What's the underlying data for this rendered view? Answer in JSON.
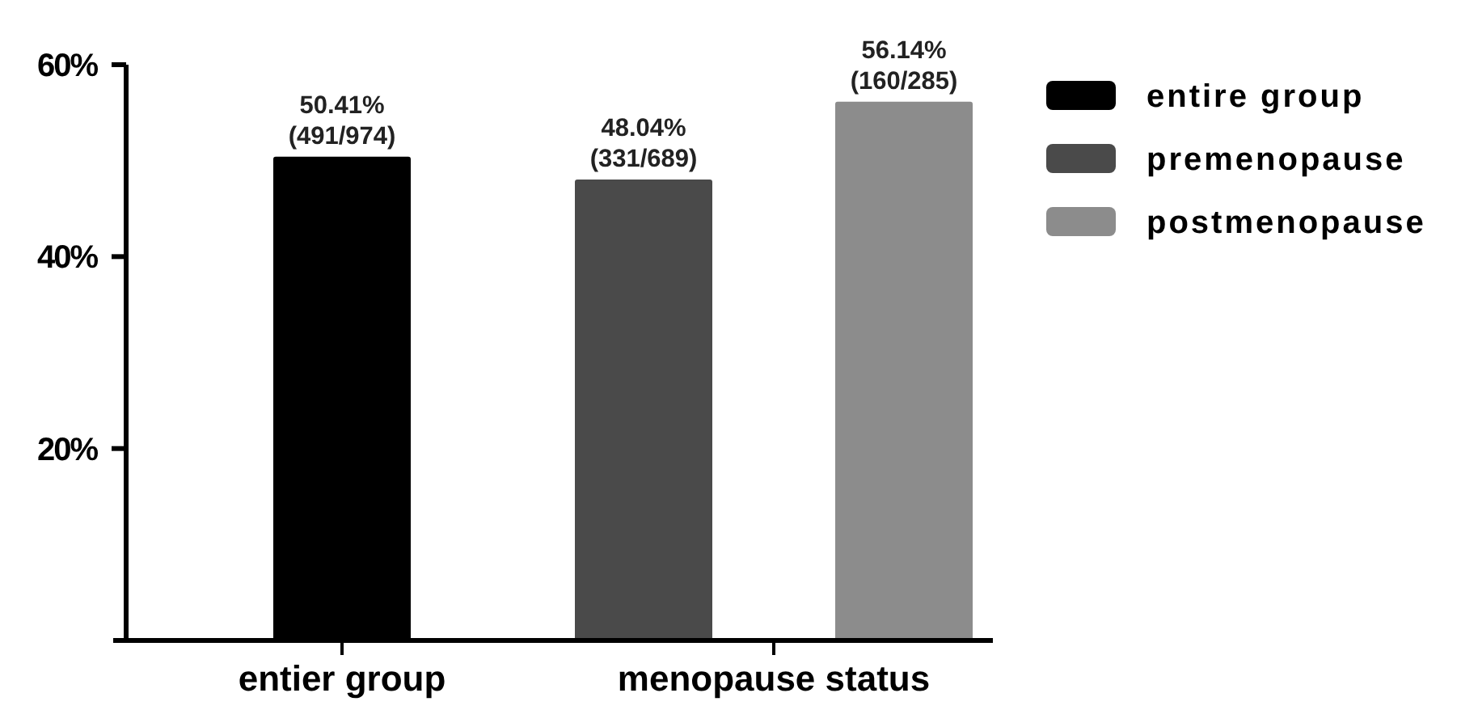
{
  "chart_data": {
    "type": "bar",
    "categories": [
      "entier group",
      "menopause status"
    ],
    "series": [
      {
        "name": "entire group",
        "color": "#000000",
        "values": [
          50.41,
          null
        ],
        "value_labels": [
          "50.41%\n(491/974)",
          null
        ]
      },
      {
        "name": "premenopause",
        "color": "#4a4a4a",
        "values": [
          null,
          48.04
        ],
        "value_labels": [
          null,
          "48.04%\n(331/689)"
        ]
      },
      {
        "name": "postmenopause",
        "color": "#8c8c8c",
        "values": [
          null,
          56.14
        ],
        "value_labels": [
          null,
          "56.14%\n(160/285)"
        ]
      }
    ],
    "ylim": [
      0,
      60
    ],
    "yticks": [
      {
        "value": 20,
        "label": "20%"
      },
      {
        "value": 40,
        "label": "40%"
      },
      {
        "value": 60,
        "label": "60%"
      }
    ],
    "legend": "top right",
    "grid": false
  }
}
